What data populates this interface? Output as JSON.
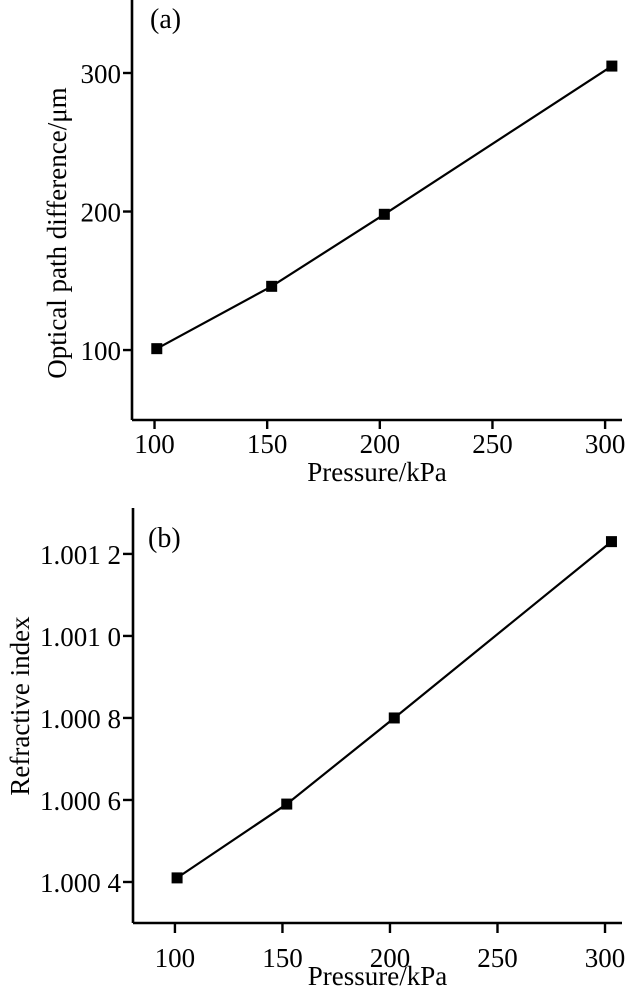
{
  "figure": {
    "background": "#ffffff",
    "ink": "#000000"
  },
  "chart_data": [
    {
      "id": "a",
      "type": "line",
      "panel_label": "(a)",
      "xlabel": "Pressure/kPa",
      "ylabel": "Optical path difference/μm",
      "marker": "filled-square",
      "line_color": "#000000",
      "grid": false,
      "legend": "none",
      "x": [
        101,
        152,
        202,
        303
      ],
      "y": [
        101,
        146,
        198,
        305
      ],
      "xticks": [
        100,
        150,
        200,
        250,
        300
      ],
      "xtick_labels": [
        "100",
        "150",
        "200",
        "250",
        "300"
      ],
      "yticks": [
        100,
        200,
        300
      ],
      "ytick_labels": [
        "100",
        "200",
        "300"
      ],
      "xlim": [
        90,
        307.5
      ],
      "ylim": [
        49.5,
        352.7
      ]
    },
    {
      "id": "b",
      "type": "line",
      "panel_label": "(b)",
      "xlabel": "Pressure/kPa",
      "ylabel": "Refractive index",
      "marker": "filled-square",
      "line_color": "#000000",
      "grid": false,
      "legend": "none",
      "x": [
        101,
        152,
        202,
        303
      ],
      "y": [
        1.00041,
        1.00059,
        1.0008,
        1.00123
      ],
      "xticks": [
        100,
        150,
        200,
        250,
        300
      ],
      "xtick_labels": [
        "100",
        "150",
        "200",
        "250",
        "300"
      ],
      "yticks": [
        1.0004,
        1.0006,
        1.0008,
        1.001,
        1.0012
      ],
      "ytick_labels": [
        "1.000 4",
        "1.000 6",
        "1.000 8",
        "1.001 0",
        "1.001 2"
      ],
      "xlim": [
        80.5,
        307.9
      ],
      "ylim": [
        1.0003,
        1.001312
      ]
    }
  ]
}
